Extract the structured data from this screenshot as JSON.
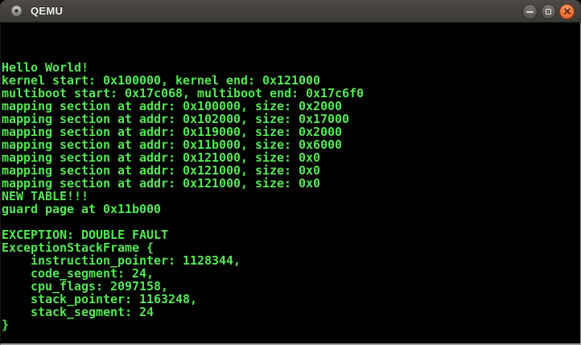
{
  "window": {
    "title": "QEMU",
    "icons": {
      "window_icon": "qemu-logo-icon",
      "minimize": "minimize-icon",
      "maximize": "maximize-icon",
      "close": "close-icon"
    },
    "controls": {
      "minimize_label": "Minimize",
      "maximize_label": "Maximize",
      "close_label": "Close"
    },
    "titlebar_colors": {
      "background_top": "#4d4a45",
      "background_bottom": "#3c3a36",
      "close_button": "#e8652f"
    }
  },
  "terminal": {
    "foreground": "#55e855",
    "background": "#000000",
    "columns": 80,
    "rows": 25,
    "lines": [
      "",
      "",
      "",
      "Hello World!",
      "kernel start: 0x100000, kernel end: 0x121000",
      "multiboot start: 0x17c068, multiboot end: 0x17c6f0",
      "mapping section at addr: 0x100000, size: 0x2000",
      "mapping section at addr: 0x102000, size: 0x17000",
      "mapping section at addr: 0x119000, size: 0x2000",
      "mapping section at addr: 0x11b000, size: 0x6000",
      "mapping section at addr: 0x121000, size: 0x0",
      "mapping section at addr: 0x121000, size: 0x0",
      "mapping section at addr: 0x121000, size: 0x0",
      "NEW TABLE!!!",
      "guard page at 0x11b000",
      "",
      "EXCEPTION: DOUBLE FAULT",
      "ExceptionStackFrame {",
      "    instruction_pointer: 1128344,",
      "    code_segment: 24,",
      "    cpu_flags: 2097158,",
      "    stack_pointer: 1163248,",
      "    stack_segment: 24",
      "}",
      ""
    ]
  }
}
